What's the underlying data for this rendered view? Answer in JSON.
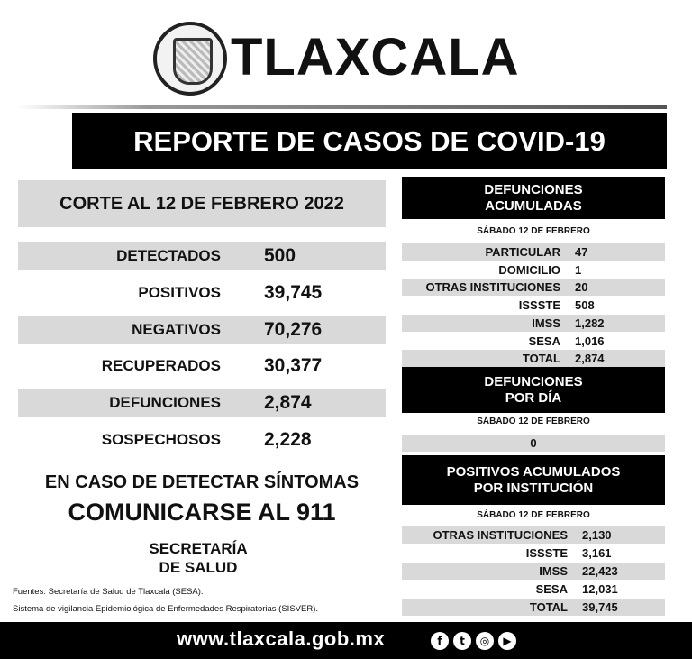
{
  "header": {
    "brand": "TLAXCALA",
    "banner": "REPORTE DE CASOS DE COVID-19"
  },
  "corte": "CORTE AL 12 DE FEBRERO 2022",
  "stats": [
    {
      "label": "DETECTADOS",
      "value": "500"
    },
    {
      "label": "POSITIVOS",
      "value": "39,745"
    },
    {
      "label": "NEGATIVOS",
      "value": "70,276"
    },
    {
      "label": "RECUPERADOS",
      "value": "30,377"
    },
    {
      "label": "DEFUNCIONES",
      "value": "2,874"
    },
    {
      "label": "SOSPECHOSOS",
      "value": "2,228"
    }
  ],
  "cta": {
    "line1": "EN CASO DE DETECTAR SÍNTOMAS",
    "line2": "COMUNICARSE AL 911",
    "org1": "SECRETARÍA",
    "org2": "DE SALUD"
  },
  "sources": [
    "Fuentes:  Secretaría de Salud de Tlaxcala (SESA).",
    "Sistema de vigilancia Epidemiológica de Enfermedades Respiratorias (SISVER)."
  ],
  "footer": {
    "url": "www.tlaxcala.gob.mx",
    "social": [
      "facebook-icon",
      "twitter-icon",
      "instagram-icon",
      "youtube-icon"
    ]
  },
  "defunciones_acumuladas": {
    "title1": "DEFUNCIONES",
    "title2": "ACUMULADAS",
    "date": "SÁBADO 12 DE FEBRERO",
    "rows": [
      {
        "label": "PARTICULAR",
        "value": "47"
      },
      {
        "label": "DOMICILIO",
        "value": "1"
      },
      {
        "label": "OTRAS INSTITUCIONES",
        "value": "20"
      },
      {
        "label": "ISSSTE",
        "value": "508"
      },
      {
        "label": "IMSS",
        "value": "1,282"
      },
      {
        "label": "SESA",
        "value": "1,016"
      },
      {
        "label": "TOTAL",
        "value": "2,874"
      }
    ]
  },
  "defunciones_dia": {
    "title1": "DEFUNCIONES",
    "title2": "POR DÍA",
    "date": "SÁBADO 12 DE FEBRERO",
    "value": "0"
  },
  "positivos_institucion": {
    "title1": "POSITIVOS ACUMULADOS",
    "title2": "POR INSTITUCIÓN",
    "date": "SÁBADO 12 DE FEBRERO",
    "rows": [
      {
        "label": "OTRAS INSTITUCIONES",
        "value": "2,130"
      },
      {
        "label": "ISSSTE",
        "value": "3,161"
      },
      {
        "label": "IMSS",
        "value": "22,423"
      },
      {
        "label": "SESA",
        "value": "12,031"
      },
      {
        "label": "TOTAL",
        "value": "39,745"
      }
    ]
  }
}
